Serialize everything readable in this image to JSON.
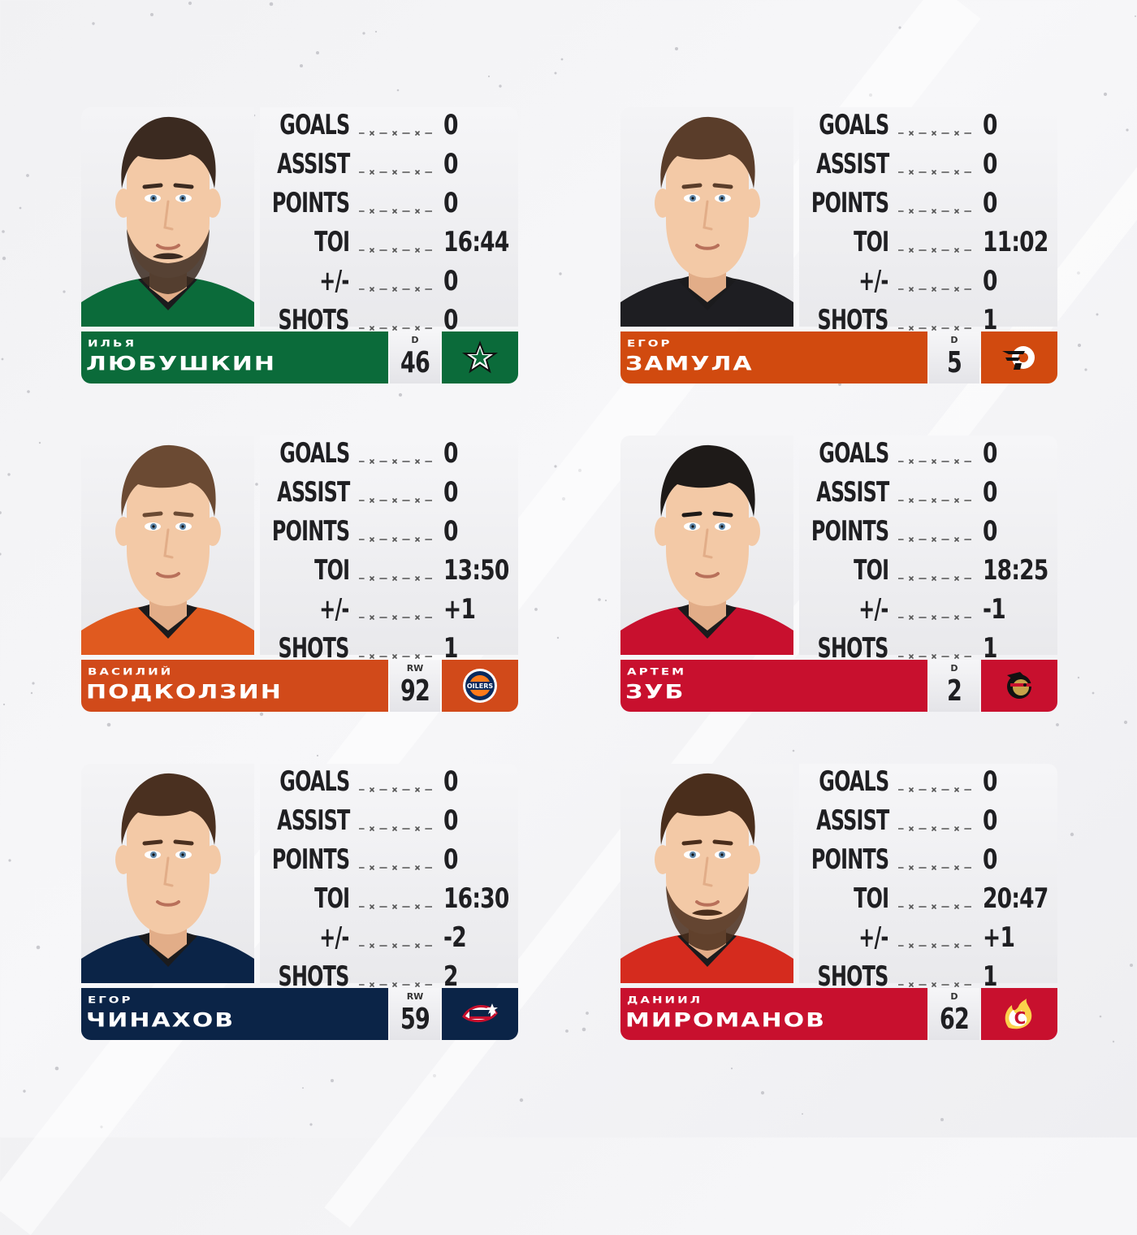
{
  "stat_labels": [
    "GOALS",
    "ASSIST",
    "POINTS",
    "TOI",
    "+/-",
    "SHOTS"
  ],
  "players": [
    {
      "first_name": "ИЛЬЯ",
      "last_name": "ЛЮБУШКИН",
      "position": "D",
      "number": "46",
      "team_logo": "dallas-stars-logo",
      "color": "#0b6b3a",
      "jersey_color": "#0b6b3a",
      "hair_color": "#3b2a20",
      "beard": true,
      "stats": {
        "goals": "0",
        "assist": "0",
        "points": "0",
        "toi": "16:44",
        "plus_minus": "0",
        "shots": "0"
      }
    },
    {
      "first_name": "ЕГОР",
      "last_name": "ЗАМУЛА",
      "position": "D",
      "number": "5",
      "team_logo": "philadelphia-flyers-logo",
      "color": "#d14a0f",
      "jersey_color": "#1e1e22",
      "hair_color": "#5a3d2a",
      "beard": false,
      "stats": {
        "goals": "0",
        "assist": "0",
        "points": "0",
        "toi": "11:02",
        "plus_minus": "0",
        "shots": "1"
      }
    },
    {
      "first_name": "ВАСИЛИЙ",
      "last_name": "ПОДКОЛЗИН",
      "position": "RW",
      "number": "92",
      "team_logo": "edmonton-oilers-logo",
      "color": "#d14a1a",
      "jersey_color": "#e05a1f",
      "hair_color": "#6b4a33",
      "beard": false,
      "stats": {
        "goals": "0",
        "assist": "0",
        "points": "0",
        "toi": "13:50",
        "plus_minus": "+1",
        "shots": "1"
      }
    },
    {
      "first_name": "АРТЕМ",
      "last_name": "ЗУБ",
      "position": "D",
      "number": "2",
      "team_logo": "ottawa-senators-logo",
      "color": "#c8102e",
      "jersey_color": "#c8102e",
      "hair_color": "#1e1a18",
      "beard": false,
      "stats": {
        "goals": "0",
        "assist": "0",
        "points": "0",
        "toi": "18:25",
        "plus_minus": "-1",
        "shots": "1"
      }
    },
    {
      "first_name": "ЕГОР",
      "last_name": "ЧИНАХОВ",
      "position": "RW",
      "number": "59",
      "team_logo": "columbus-blue-jackets-logo",
      "color": "#0b2447",
      "jersey_color": "#0b2447",
      "hair_color": "#4a3020",
      "beard": false,
      "stats": {
        "goals": "0",
        "assist": "0",
        "points": "0",
        "toi": "16:30",
        "plus_minus": "-2",
        "shots": "2"
      }
    },
    {
      "first_name": "ДАНИИЛ",
      "last_name": "МИРОМАНОВ",
      "position": "D",
      "number": "62",
      "team_logo": "calgary-flames-logo",
      "color": "#c8102e",
      "jersey_color": "#d52b1e",
      "hair_color": "#4a2e1c",
      "beard": true,
      "stats": {
        "goals": "0",
        "assist": "0",
        "points": "0",
        "toi": "20:47",
        "plus_minus": "+1",
        "shots": "1"
      }
    }
  ]
}
